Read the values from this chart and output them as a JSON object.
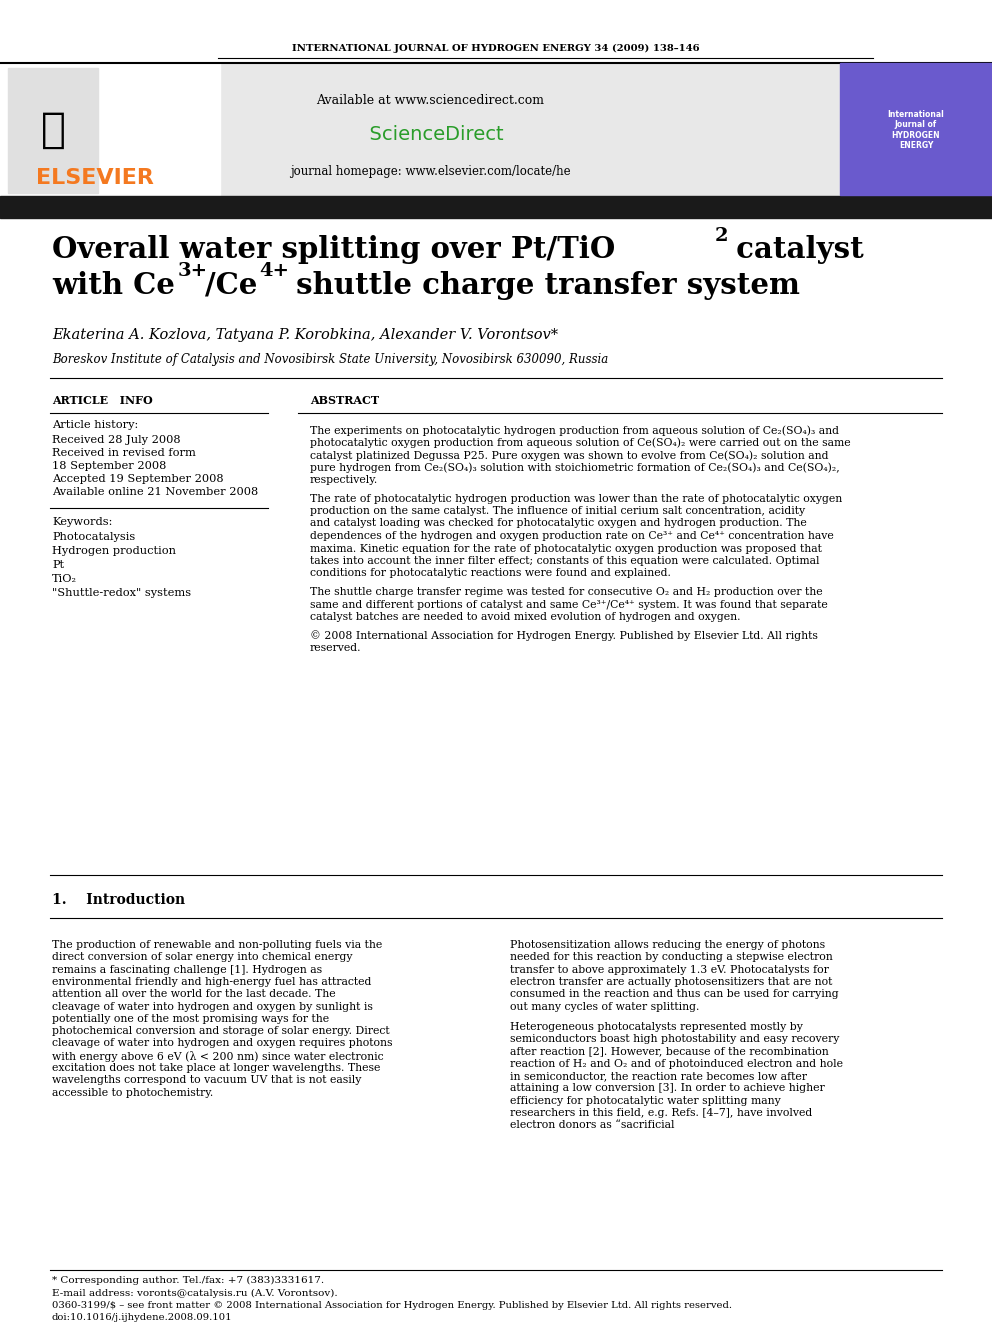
{
  "journal_header": "INTERNATIONAL JOURNAL OF HYDROGEN ENERGY 34 (2009) 138–146",
  "available_text": "Available at www.sciencedirect.com",
  "journal_homepage": "journal homepage: www.elsevier.com/locate/he",
  "title_line1": "Overall water splitting over Pt/TiO",
  "title_line1_sub": "2",
  "title_line1_end": " catalyst",
  "title_line2": "with Ce",
  "title_line2_sup1": "3+",
  "title_line2_mid": "/Ce",
  "title_line2_sup2": "4+",
  "title_line2_end": " shuttle charge transfer system",
  "authors": "Ekaterina A. Kozlova, Tatyana P. Korobkina, Alexander V. Vorontsov*",
  "affiliation": "Boreskov Institute of Catalysis and Novosibirsk State University, Novosibirsk 630090, Russia",
  "article_info_label": "ARTICLE   INFO",
  "abstract_label": "ABSTRACT",
  "article_history_label": "Article history:",
  "received1": "Received 28 July 2008",
  "received_revised_label": "Received in revised form",
  "received2": "18 September 2008",
  "accepted": "Accepted 19 September 2008",
  "available_online": "Available online 21 November 2008",
  "keywords_label": "Keywords:",
  "kw1": "Photocatalysis",
  "kw2": "Hydrogen production",
  "kw3": "Pt",
  "kw4": "TiO₂",
  "kw5": "\"Shuttle-redox\" systems",
  "abstract_text1": "The experiments on photocatalytic hydrogen production from aqueous solution of Ce₂(SO₄)₃ and photocatalytic oxygen production from aqueous solution of Ce(SO₄)₂ were carried out on the same catalyst platinized Degussa P25. Pure oxygen was shown to evolve from Ce(SO₄)₂ solution and pure hydrogen from Ce₂(SO₄)₃ solution with stoichiometric formation of Ce₂(SO₄)₃ and Ce(SO₄)₂, respectively.",
  "abstract_text2": "The rate of photocatalytic hydrogen production was lower than the rate of photocatalytic oxygen production on the same catalyst. The influence of initial cerium salt concentration, acidity and catalyst loading was checked for photocatalytic oxygen and hydrogen production. The dependences of the hydrogen and oxygen production rate on Ce³⁺ and Ce⁴⁺ concentration have maxima. Kinetic equation for the rate of photocatalytic oxygen production was proposed that takes into account the inner filter effect; constants of this equation were calculated. Optimal conditions for photocatalytic reactions were found and explained.",
  "abstract_text3": "The shuttle charge transfer regime was tested for consecutive O₂ and H₂ production over the same and different portions of catalyst and same Ce³⁺/Ce⁴⁺ system. It was found that separate catalyst batches are needed to avoid mixed evolution of hydrogen and oxygen.",
  "abstract_copyright": "© 2008 International Association for Hydrogen Energy. Published by Elsevier Ltd. All rights reserved.",
  "section1_num": "1.",
  "section1_title": "Introduction",
  "intro_para1": "The production of renewable and non-polluting fuels via the direct conversion of solar energy into chemical energy remains a fascinating challenge [1]. Hydrogen as environmental friendly and high-energy fuel has attracted attention all over the world for the last decade. The cleavage of water into hydrogen and oxygen by sunlight is potentially one of the most promising ways for the photochemical conversion and storage of solar energy. Direct cleavage of water into hydrogen and oxygen requires photons with energy above 6 eV (λ < 200 nm) since water electronic excitation does not take place at longer wavelengths. These wavelengths correspond to vacuum UV that is not easily accessible to photochemistry.",
  "intro_para2": "Photosensitization allows reducing the energy of photons needed for this reaction by conducting a stepwise electron transfer to above approximately 1.3 eV. Photocatalysts for electron transfer are actually photosensitizers that are not consumed in the reaction and thus can be used for carrying out many cycles of water splitting.",
  "intro_para3": "Heterogeneous photocatalysts represented mostly by semiconductors boast high photostability and easy recovery after reaction [2]. However, because of the recombination reaction of H₂ and O₂ and of photoinduced electron and hole in semiconductor, the reaction rate becomes low after attaining a low conversion [3]. In order to achieve higher efficiency for photocatalytic water splitting many researchers in this field, e.g. Refs. [4–7], have involved electron donors as “sacrificial",
  "footnote_star": "* Corresponding author. Tel./fax: +7 (383)3331617.",
  "footnote_email": "E-mail address: voronts@catalysis.ru (A.V. Vorontsov).",
  "footnote_issn": "0360-3199/$ – see front matter © 2008 International Association for Hydrogen Energy. Published by Elsevier Ltd. All rights reserved.",
  "footnote_doi": "doi:10.1016/j.ijhydene.2008.09.101",
  "bg_color": "#ffffff",
  "header_bar_color": "#1a1a1a",
  "elsevier_orange": "#f47920",
  "sd_gray": "#e8e8e8",
  "title_bold_color": "#000000",
  "section_color": "#000000",
  "link_color": "#000000"
}
